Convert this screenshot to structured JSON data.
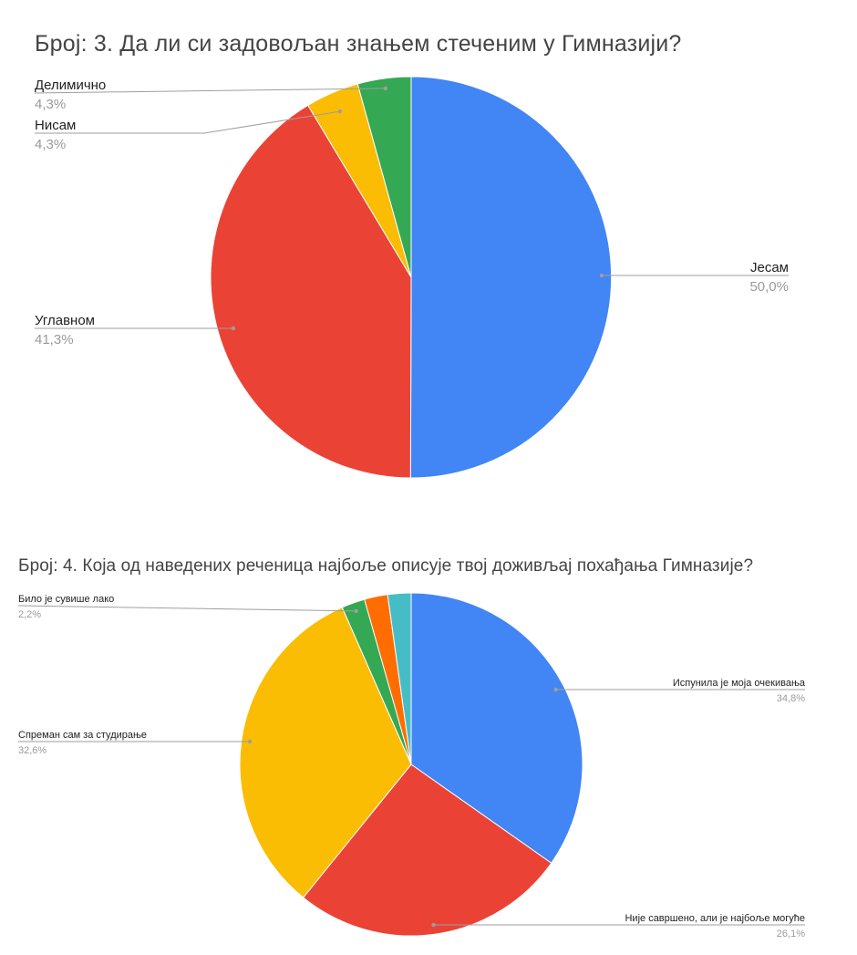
{
  "chart_data": [
    {
      "type": "pie",
      "title": "Број: 3. Да ли си задовољан знањем стеченим у Гимназији?",
      "slices": [
        {
          "label": "Јесам",
          "value": 50.0,
          "pct_label": "50,0%",
          "color": "#4285f4"
        },
        {
          "label": "Углавном",
          "value": 41.3,
          "pct_label": "41,3%",
          "color": "#ea4335"
        },
        {
          "label": "Нисам",
          "value": 4.3,
          "pct_label": "4,3%",
          "color": "#fbbc04"
        },
        {
          "label": "Делимично",
          "value": 4.3,
          "pct_label": "4,3%",
          "color": "#34a853"
        }
      ]
    },
    {
      "type": "pie",
      "title": "Број: 4. Која од наведених реченица најбоље описује твој доживљај похађања Гимназије?",
      "slices": [
        {
          "label": "Испунила је моја очекивања",
          "value": 34.8,
          "pct_label": "34,8%",
          "color": "#4285f4"
        },
        {
          "label": "Није савршено, али је најбоље могуће",
          "value": 26.1,
          "pct_label": "26,1%",
          "color": "#ea4335"
        },
        {
          "label": "Спреман сам за студирање",
          "value": 32.6,
          "pct_label": "32,6%",
          "color": "#fbbc04"
        },
        {
          "label": "Било је сувише лако",
          "value": 2.2,
          "pct_label": "2,2%",
          "color": "#34a853"
        },
        {
          "label": "",
          "value": 2.2,
          "pct_label": "",
          "color": "#ff6d01"
        },
        {
          "label": "",
          "value": 2.2,
          "pct_label": "",
          "color": "#46bdc6"
        }
      ]
    }
  ]
}
